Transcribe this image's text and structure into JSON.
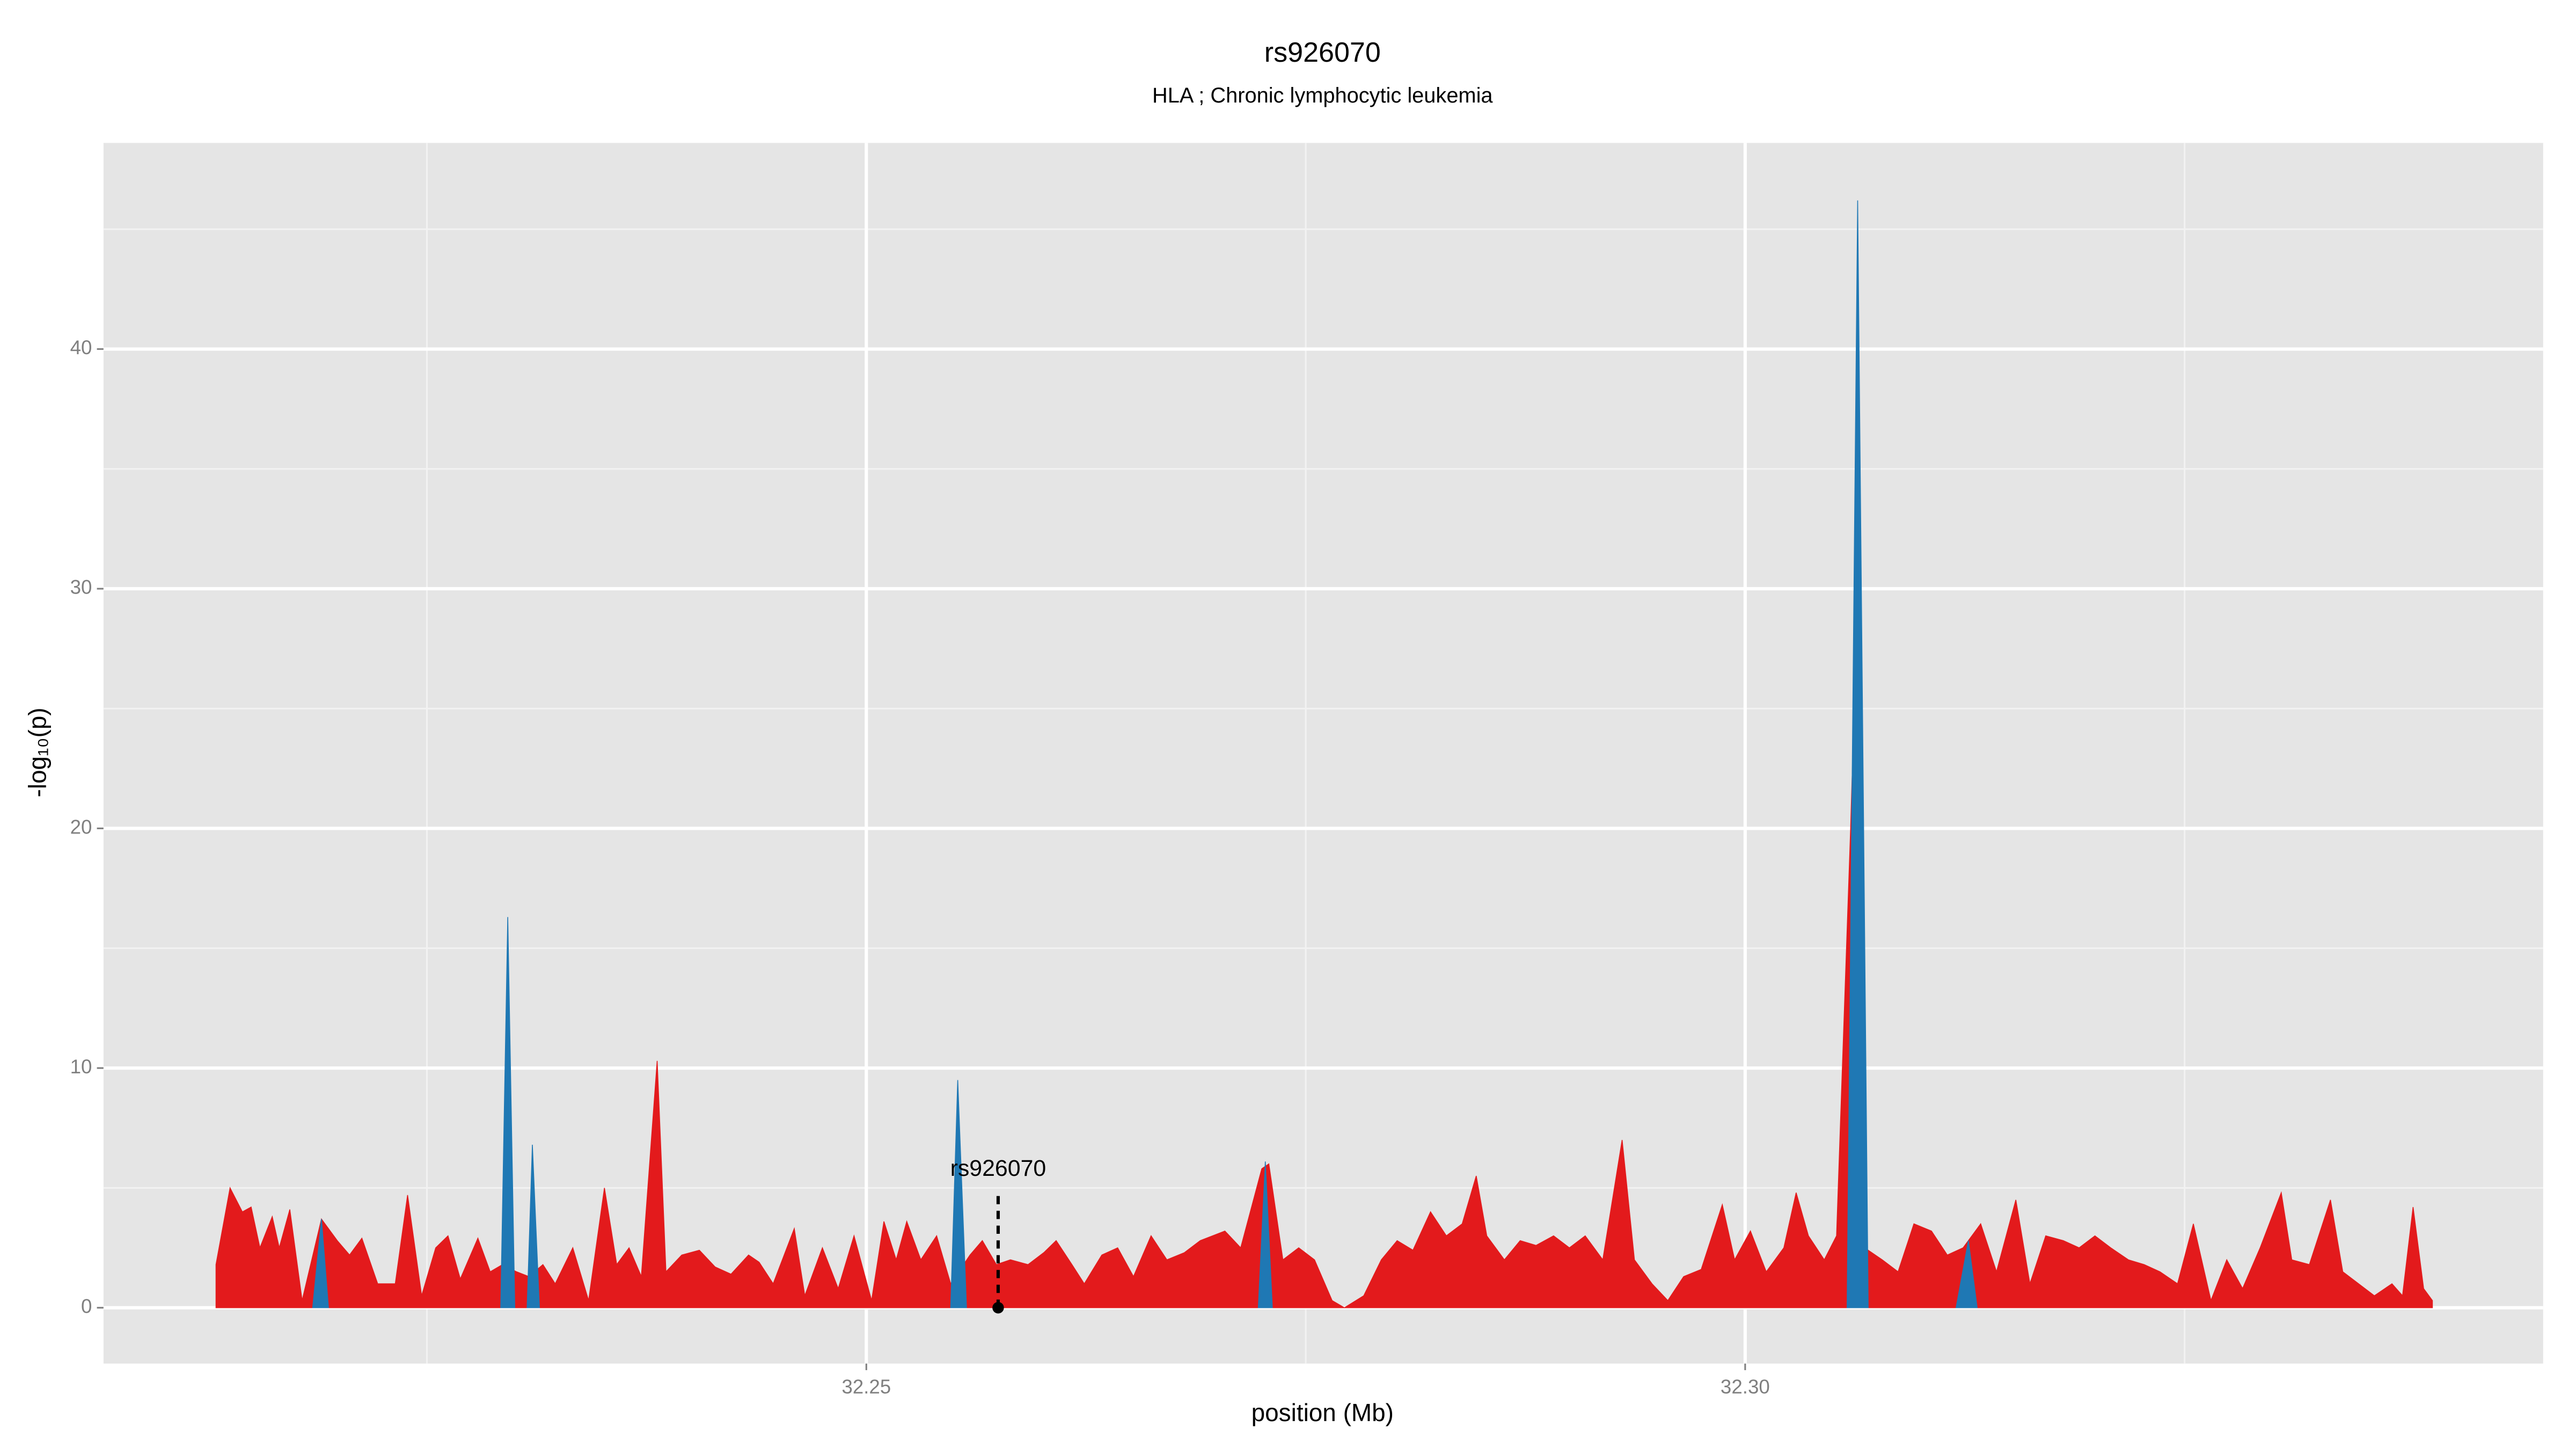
{
  "chart_data": {
    "type": "area",
    "title": "rs926070",
    "subtitle": "HLA ; Chronic lymphocytic leukemia",
    "x_label": "position (Mb)",
    "y_label": "-log₁₀(p)",
    "xlim": [
      32.2066,
      32.3454
    ],
    "ylim": [
      -2.33,
      48.6
    ],
    "xticks": [
      {
        "value": 32.25,
        "label": "32.25"
      },
      {
        "value": 32.3,
        "label": "32.30"
      }
    ],
    "yticks": [
      0,
      10,
      20,
      30,
      40
    ],
    "x_minor_ticks": [
      32.225,
      32.275,
      32.325
    ],
    "y_minor_ticks": [
      5,
      15,
      25,
      35,
      45
    ],
    "grid": true,
    "annotation": {
      "text": "rs926070",
      "x": 32.2575,
      "y": 0
    },
    "series": [
      {
        "color": "#e31a1c",
        "x": [
          32.213,
          32.2138,
          32.2145,
          32.215,
          32.2155,
          32.2162,
          32.2166,
          32.2172,
          32.2179,
          32.219,
          32.2199,
          32.2206,
          32.2213,
          32.2222,
          32.2232,
          32.2239,
          32.2247,
          32.2255,
          32.2262,
          32.2269,
          32.2279,
          32.2286,
          32.2293,
          32.2301,
          32.2308,
          32.2316,
          32.2323,
          32.2333,
          32.2342,
          32.2351,
          32.2358,
          32.2365,
          32.2372,
          32.2381,
          32.2386,
          32.2395,
          32.2405,
          32.2414,
          32.2423,
          32.2433,
          32.2439,
          32.2447,
          32.2459,
          32.2465,
          32.2475,
          32.2484,
          32.2493,
          32.2503,
          32.251,
          32.2517,
          32.2523,
          32.2531,
          32.254,
          32.2548,
          32.2559,
          32.2566,
          32.2574,
          32.2582,
          32.2592,
          32.2601,
          32.2608,
          32.2617,
          32.2624,
          32.2634,
          32.2643,
          32.2652,
          32.2662,
          32.2671,
          32.2681,
          32.269,
          32.2704,
          32.2713,
          32.2725,
          32.2729,
          32.2737,
          32.2746,
          32.2755,
          32.2765,
          32.2772,
          32.2783,
          32.2793,
          32.2802,
          32.2811,
          32.2821,
          32.283,
          32.2839,
          32.2847,
          32.2853,
          32.2863,
          32.2872,
          32.2881,
          32.2891,
          32.29,
          32.2909,
          32.2919,
          32.293,
          32.2937,
          32.2947,
          32.2956,
          32.2965,
          32.2975,
          32.2987,
          32.2994,
          32.3003,
          32.3012,
          32.3022,
          32.3029,
          32.3036,
          32.3045,
          32.3052,
          32.306,
          32.3064,
          32.3068,
          32.3078,
          32.3087,
          32.3096,
          32.3106,
          32.3115,
          32.3124,
          32.3134,
          32.3143,
          32.3154,
          32.3162,
          32.3171,
          32.3181,
          32.319,
          32.3199,
          32.3208,
          32.3218,
          32.3227,
          32.3236,
          32.3246,
          32.3255,
          32.3265,
          32.3274,
          32.3283,
          32.3293,
          32.3305,
          32.3311,
          32.3321,
          32.3333,
          32.334,
          32.3349,
          32.3358,
          32.3368,
          32.3374,
          32.338,
          32.3386,
          32.3391
        ],
        "values": [
          1.8,
          5.0,
          4.0,
          4.2,
          2.5,
          3.8,
          2.5,
          4.1,
          0.3,
          3.7,
          2.8,
          2.2,
          2.9,
          1.0,
          1.0,
          4.7,
          0.5,
          2.5,
          3.0,
          1.2,
          2.9,
          1.5,
          1.8,
          1.5,
          1.3,
          1.8,
          1.0,
          2.5,
          0.3,
          5.0,
          1.8,
          2.5,
          1.3,
          10.3,
          1.5,
          2.2,
          2.4,
          1.7,
          1.4,
          2.2,
          1.9,
          1.0,
          3.3,
          0.5,
          2.5,
          0.8,
          3.0,
          0.3,
          3.6,
          2.0,
          3.6,
          2.0,
          3.0,
          1.0,
          2.2,
          2.8,
          1.8,
          2.0,
          1.8,
          2.3,
          2.8,
          1.8,
          1.0,
          2.2,
          2.5,
          1.3,
          3.0,
          2.0,
          2.3,
          2.8,
          3.2,
          2.5,
          5.8,
          6.0,
          2.0,
          2.5,
          2.0,
          0.3,
          0.0,
          0.5,
          2.0,
          2.8,
          2.4,
          4.0,
          3.0,
          3.5,
          5.5,
          3.0,
          2.0,
          2.8,
          2.6,
          3.0,
          2.5,
          3.0,
          2.0,
          7.0,
          2.0,
          1.0,
          0.3,
          1.3,
          1.6,
          4.3,
          2.0,
          3.2,
          1.5,
          2.5,
          4.8,
          3.0,
          2.0,
          3.0,
          20.0,
          30.0,
          2.5,
          2.0,
          1.5,
          3.5,
          3.2,
          2.2,
          2.5,
          3.5,
          1.5,
          4.5,
          1.0,
          3.0,
          2.8,
          2.5,
          3.0,
          2.5,
          2.0,
          1.8,
          1.5,
          1.0,
          3.5,
          0.3,
          2.0,
          0.8,
          2.5,
          4.8,
          2.0,
          1.8,
          4.5,
          1.5,
          1.0,
          0.5,
          1.0,
          0.5,
          4.2,
          0.8,
          0.3
        ]
      },
      {
        "color": "#1f78b4",
        "x": [
          32.2185,
          32.219,
          32.2194,
          null,
          32.2292,
          32.2296,
          32.23,
          null,
          32.2307,
          32.231,
          32.2314,
          null,
          32.2548,
          32.2552,
          32.2557,
          null,
          32.2723,
          32.2727,
          32.2731,
          null,
          32.3058,
          32.3064,
          32.307,
          null,
          32.312,
          32.3127,
          32.3132
        ],
        "values": [
          0,
          3.7,
          0,
          null,
          0,
          16.3,
          0,
          null,
          0,
          6.8,
          0,
          null,
          0,
          9.5,
          0,
          null,
          0,
          6.1,
          0,
          null,
          0,
          46.2,
          0,
          null,
          0,
          2.8,
          0
        ]
      }
    ]
  }
}
